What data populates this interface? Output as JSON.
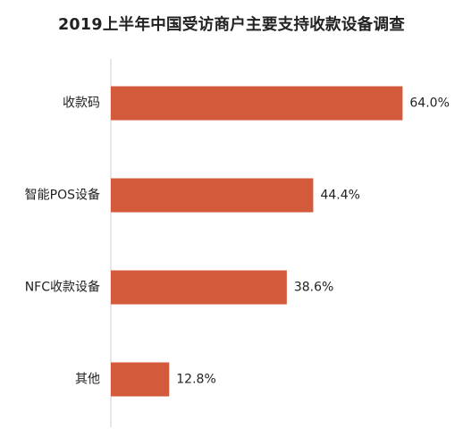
{
  "chart_data": {
    "type": "bar",
    "orientation": "horizontal",
    "title": "2019上半年中国受访商户主要支持收款设备调查",
    "categories": [
      "收款码",
      "智能POS设备",
      "NFC收款设备",
      "其他"
    ],
    "values": [
      64.0,
      44.4,
      38.6,
      12.8
    ],
    "value_labels": [
      "64.0%",
      "44.4%",
      "38.6%",
      "12.8%"
    ],
    "xlim": [
      0,
      70
    ],
    "grid": false,
    "legend": "none",
    "bar_color": "#D35A3A",
    "axis_color": "#cfcfcf"
  }
}
